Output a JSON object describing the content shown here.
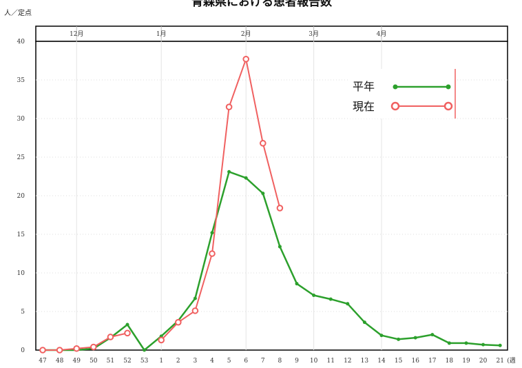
{
  "chart_data": {
    "type": "line",
    "title": "青森県における患者報告数",
    "ylabel": "人／定点",
    "xlabel": "",
    "x_unit": "(週",
    "ylim": [
      0,
      40
    ],
    "yticks": [
      0,
      5,
      10,
      15,
      20,
      25,
      30,
      35,
      40
    ],
    "x": [
      "47",
      "48",
      "49",
      "50",
      "51",
      "52",
      "53",
      "1",
      "2",
      "3",
      "4",
      "5",
      "6",
      "7",
      "8",
      "9",
      "10",
      "11",
      "12",
      "13",
      "14",
      "15",
      "16",
      "17",
      "18",
      "19",
      "20",
      "21"
    ],
    "months": [
      {
        "label": "12月",
        "at": "49"
      },
      {
        "label": "1月",
        "at": "1"
      },
      {
        "label": "2月",
        "at": "6"
      },
      {
        "label": "3月",
        "at": "10"
      },
      {
        "label": "4月",
        "at": "14"
      }
    ],
    "legend_position": "top-right",
    "grid": true,
    "series": [
      {
        "name": "平年",
        "color": "#2ca02c",
        "marker": "dot",
        "values": [
          0,
          0,
          0,
          0.2,
          1.6,
          3.3,
          0,
          1.8,
          3.8,
          6.7,
          15.2,
          23.1,
          22.3,
          20.3,
          13.4,
          8.6,
          7.1,
          6.6,
          6.0,
          3.6,
          1.9,
          1.4,
          1.6,
          2.0,
          0.9,
          0.9,
          0.7,
          0.6
        ]
      },
      {
        "name": "現在",
        "color": "#f06060",
        "marker": "circle",
        "values": [
          0,
          0,
          0.2,
          0.4,
          1.7,
          2.2,
          null,
          1.3,
          3.6,
          5.1,
          12.5,
          31.5,
          37.7,
          26.8,
          18.4,
          null,
          null,
          null,
          null,
          null,
          null,
          null,
          null,
          null,
          null,
          null,
          null,
          null
        ]
      }
    ]
  }
}
